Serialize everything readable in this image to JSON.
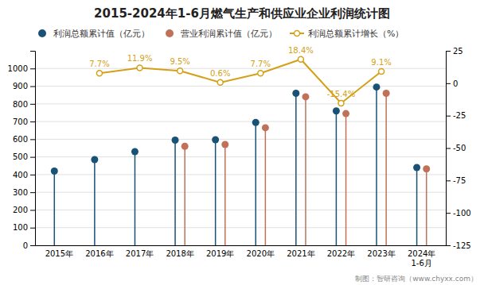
{
  "chart_data": {
    "type": "lollipop",
    "title": "2015-2024年1-6月燃气生产和供应业企业利润统计图",
    "categories": [
      "2015年",
      "2016年",
      "2017年",
      "2018年",
      "2019年",
      "2020年",
      "2021年",
      "2022年",
      "2023年",
      "2024年\n1-6月"
    ],
    "series": [
      {
        "name": "利润总额累计值（亿元）",
        "color": "#1a5276",
        "values": [
          420,
          485,
          530,
          595,
          597,
          695,
          860,
          760,
          895,
          440
        ]
      },
      {
        "name": "营业利润累计值（亿元）",
        "color": "#c0715a",
        "values": [
          null,
          null,
          null,
          560,
          570,
          665,
          840,
          745,
          860,
          432
        ]
      },
      {
        "name": "利润总额累计增长（%）",
        "type": "line",
        "axis": "y2",
        "color": "#d4a017",
        "marker": "circle",
        "data_labels": true,
        "values": [
          null,
          7.7,
          11.9,
          9.5,
          0.6,
          7.7,
          18.4,
          -15.4,
          9.1,
          null
        ],
        "value_labels": [
          null,
          "7.7%",
          "11.9%",
          "9.5%",
          "0.6%",
          "7.7%",
          "18.4%",
          "-15.4%",
          "9.1%",
          null
        ]
      }
    ],
    "ylim": [
      0,
      1100
    ],
    "yticks": [
      0,
      100,
      200,
      300,
      400,
      500,
      600,
      700,
      800,
      900,
      1000
    ],
    "y2lim": [
      -125,
      25
    ],
    "y2ticks": [
      -125,
      -100,
      -75,
      -50,
      -25,
      0,
      25
    ],
    "grid": true,
    "legend": "top-left",
    "annotations": [
      "制图：智研咨询（www.chyxx.com）"
    ]
  }
}
